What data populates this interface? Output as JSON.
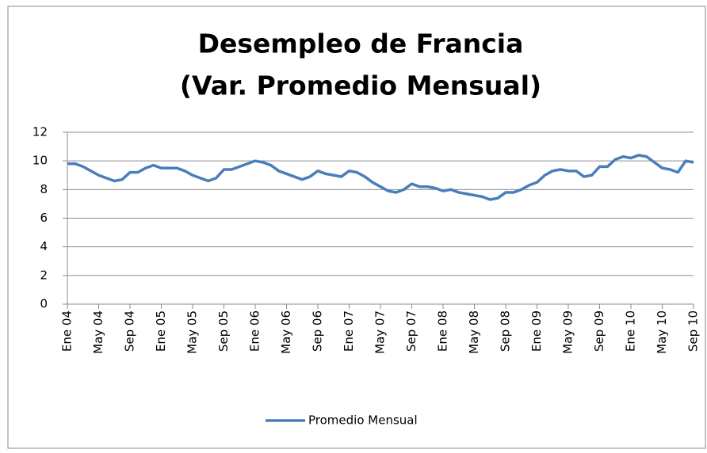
{
  "chart_data": {
    "type": "line",
    "title": [
      "Desempleo de Francia",
      "(Var. Promedio Mensual)"
    ],
    "categories": [
      "Ene 04",
      null,
      null,
      null,
      "May 04",
      null,
      null,
      null,
      "Sep 04",
      null,
      null,
      null,
      "Ene 05",
      null,
      null,
      null,
      "May 05",
      null,
      null,
      null,
      "Sep 05",
      null,
      null,
      null,
      "Ene 06",
      null,
      null,
      null,
      "May 06",
      null,
      null,
      null,
      "Sep 06",
      null,
      null,
      null,
      "Ene 07",
      null,
      null,
      null,
      "May 07",
      null,
      null,
      null,
      "Sep 07",
      null,
      null,
      null,
      "Ene 08",
      null,
      null,
      null,
      "May 08",
      null,
      null,
      null,
      "Sep 08",
      null,
      null,
      null,
      "Ene 09",
      null,
      null,
      null,
      "May 09",
      null,
      null,
      null,
      "Sep 09",
      null,
      null,
      null,
      "Ene 10",
      null,
      null,
      null,
      "May 10",
      null,
      null,
      null,
      "Sep 10"
    ],
    "series": [
      {
        "name": "Promedio Mensual",
        "color": "#4a7ebb",
        "values": [
          9.8,
          9.8,
          9.6,
          9.3,
          9.0,
          8.8,
          8.6,
          8.7,
          9.2,
          9.2,
          9.5,
          9.7,
          9.5,
          9.5,
          9.5,
          9.3,
          9.0,
          8.8,
          8.6,
          8.8,
          9.4,
          9.4,
          9.6,
          9.8,
          10.0,
          9.9,
          9.7,
          9.3,
          9.1,
          8.9,
          8.7,
          8.9,
          9.3,
          9.1,
          9.0,
          8.9,
          9.3,
          9.2,
          8.9,
          8.5,
          8.2,
          7.9,
          7.8,
          8.0,
          8.4,
          8.2,
          8.2,
          8.1,
          7.9,
          8.0,
          7.8,
          7.7,
          7.6,
          7.5,
          7.3,
          7.4,
          7.8,
          7.8,
          8.0,
          8.3,
          8.5,
          9.0,
          9.3,
          9.4,
          9.3,
          9.3,
          8.9,
          9.0,
          9.6,
          9.6,
          10.1,
          10.3,
          10.2,
          10.4,
          10.3,
          9.9,
          9.5,
          9.4,
          9.2,
          10.0,
          9.9
        ]
      }
    ],
    "ylim": [
      0,
      12
    ],
    "yticks": [
      0,
      2,
      4,
      6,
      8,
      10,
      12
    ],
    "grid": true,
    "legend": "bottom"
  }
}
